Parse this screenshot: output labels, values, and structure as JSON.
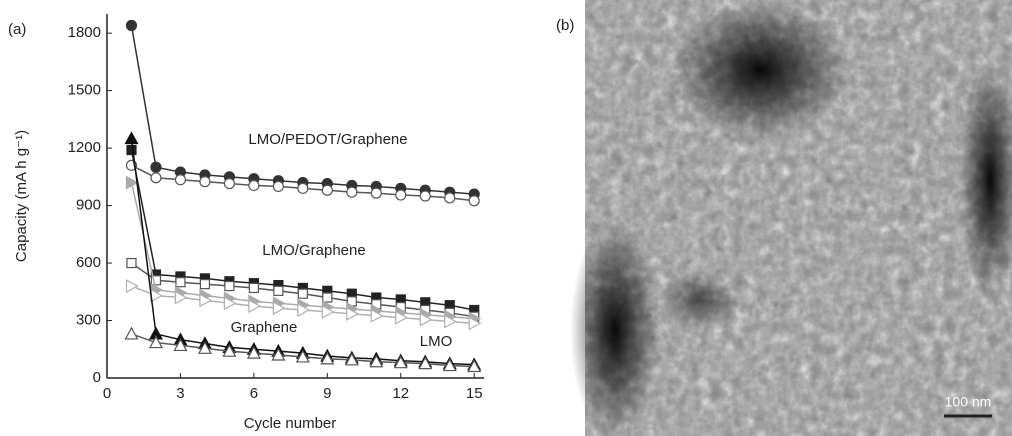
{
  "chart_data": {
    "type": "line",
    "ylabel": "Capacity (mA h g⁻¹)",
    "xlabel": "Cycle number",
    "x": [
      1,
      2,
      3,
      4,
      5,
      6,
      7,
      8,
      9,
      10,
      11,
      12,
      13,
      14,
      15
    ],
    "xlim": [
      0,
      15.4
    ],
    "xticks": [
      0,
      3,
      6,
      9,
      12,
      15
    ],
    "ylim": [
      0,
      1900
    ],
    "yticks": [
      0,
      300,
      600,
      900,
      1200,
      1500,
      1800
    ],
    "annotations": [
      "LMO/PEDOT/Graphene",
      "LMO/Graphene",
      "Graphene",
      "LMO"
    ],
    "series": [
      {
        "color": "#333333",
        "marker": "circle",
        "filled": true,
        "values": [
          1840,
          1100,
          1075,
          1060,
          1050,
          1040,
          1030,
          1020,
          1015,
          1005,
          1000,
          990,
          980,
          970,
          960
        ]
      },
      {
        "color": "#555555",
        "marker": "circle",
        "filled": false,
        "values": [
          1110,
          1045,
          1035,
          1025,
          1015,
          1005,
          1000,
          990,
          980,
          970,
          965,
          955,
          950,
          940,
          925
        ]
      },
      {
        "color": "#222222",
        "marker": "square",
        "filled": true,
        "values": [
          1190,
          540,
          530,
          520,
          505,
          495,
          485,
          470,
          455,
          440,
          420,
          410,
          395,
          380,
          355
        ]
      },
      {
        "color": "#555555",
        "marker": "square",
        "filled": false,
        "values": [
          600,
          510,
          500,
          490,
          480,
          470,
          455,
          440,
          420,
          400,
          385,
          370,
          355,
          340,
          320
        ]
      },
      {
        "color": "#aaaaaa",
        "marker": "triangle-right",
        "filled": true,
        "values": [
          1020,
          460,
          445,
          430,
          415,
          400,
          390,
          380,
          370,
          360,
          350,
          340,
          330,
          320,
          310
        ]
      },
      {
        "color": "#b0b0b0",
        "marker": "triangle-right",
        "filled": false,
        "values": [
          480,
          430,
          420,
          405,
          390,
          375,
          365,
          355,
          345,
          335,
          325,
          315,
          305,
          295,
          285
        ]
      },
      {
        "color": "#111111",
        "marker": "triangle-up",
        "filled": true,
        "values": [
          1250,
          230,
          200,
          180,
          160,
          150,
          140,
          130,
          115,
          105,
          100,
          90,
          85,
          75,
          70
        ]
      },
      {
        "color": "#555555",
        "marker": "triangle-up",
        "filled": false,
        "values": [
          230,
          185,
          170,
          155,
          140,
          130,
          120,
          110,
          100,
          95,
          85,
          80,
          75,
          65,
          60
        ]
      }
    ]
  },
  "panel_labels": [
    "(a)",
    "(b)"
  ],
  "image": {
    "scale_bar": "100 nm"
  }
}
